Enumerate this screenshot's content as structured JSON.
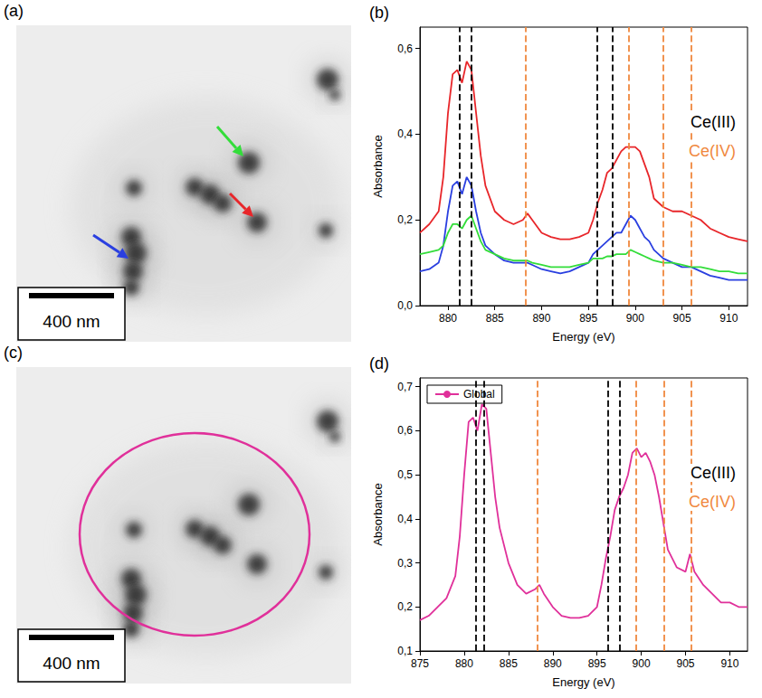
{
  "chart_data": [
    {
      "panel": "(b)",
      "type": "line",
      "xlabel": "Energy (eV)",
      "ylabel": "Absorbance",
      "x": [
        877,
        878,
        879,
        879.5,
        880,
        880.5,
        881,
        881.5,
        882,
        882.5,
        883,
        883.5,
        884,
        885,
        886,
        887,
        888,
        888.5,
        889,
        890,
        891,
        892,
        893,
        894,
        895,
        895.5,
        896,
        896.5,
        897,
        897.5,
        898,
        898.5,
        899,
        899.5,
        900,
        900.5,
        901,
        901.5,
        902,
        903,
        904,
        905,
        906,
        907,
        908,
        909,
        910,
        911,
        912
      ],
      "series": [
        {
          "color": "#e8262a",
          "values": [
            0.17,
            0.19,
            0.22,
            0.3,
            0.45,
            0.54,
            0.55,
            0.52,
            0.57,
            0.55,
            0.45,
            0.35,
            0.28,
            0.22,
            0.2,
            0.19,
            0.2,
            0.215,
            0.2,
            0.17,
            0.16,
            0.155,
            0.155,
            0.16,
            0.17,
            0.2,
            0.24,
            0.27,
            0.31,
            0.32,
            0.34,
            0.36,
            0.37,
            0.37,
            0.37,
            0.36,
            0.33,
            0.3,
            0.25,
            0.23,
            0.22,
            0.22,
            0.21,
            0.2,
            0.18,
            0.17,
            0.16,
            0.155,
            0.15
          ]
        },
        {
          "color": "#2a3fe0",
          "values": [
            0.08,
            0.085,
            0.1,
            0.14,
            0.22,
            0.28,
            0.29,
            0.26,
            0.3,
            0.28,
            0.22,
            0.17,
            0.14,
            0.12,
            0.105,
            0.1,
            0.1,
            0.1,
            0.095,
            0.085,
            0.08,
            0.075,
            0.08,
            0.09,
            0.1,
            0.12,
            0.13,
            0.14,
            0.15,
            0.16,
            0.17,
            0.17,
            0.19,
            0.21,
            0.2,
            0.18,
            0.16,
            0.15,
            0.13,
            0.11,
            0.1,
            0.09,
            0.09,
            0.08,
            0.07,
            0.065,
            0.06,
            0.06,
            0.06
          ]
        },
        {
          "color": "#33dd3a",
          "values": [
            0.12,
            0.125,
            0.13,
            0.14,
            0.17,
            0.19,
            0.19,
            0.18,
            0.2,
            0.21,
            0.18,
            0.15,
            0.13,
            0.12,
            0.11,
            0.105,
            0.105,
            0.105,
            0.1,
            0.095,
            0.09,
            0.09,
            0.09,
            0.095,
            0.1,
            0.11,
            0.11,
            0.11,
            0.115,
            0.115,
            0.12,
            0.12,
            0.12,
            0.13,
            0.125,
            0.12,
            0.115,
            0.11,
            0.105,
            0.1,
            0.1,
            0.095,
            0.09,
            0.09,
            0.085,
            0.08,
            0.08,
            0.075,
            0.075
          ]
        }
      ],
      "xlim": [
        877,
        912
      ],
      "xticks": [
        880,
        885,
        890,
        895,
        900,
        905,
        910
      ],
      "ylim": [
        0,
        0.65
      ],
      "yticks": [
        {
          "value": 0,
          "label": "0,0"
        },
        {
          "value": 0.2,
          "label": "0,2"
        },
        {
          "value": 0.4,
          "label": "0,4"
        },
        {
          "value": 0.6,
          "label": "0,6"
        }
      ],
      "reference_lines": [
        {
          "label": "Ce(III)",
          "color": "#000000",
          "x": [
            881.2,
            882.5,
            895.9,
            897.6
          ]
        },
        {
          "label": "Ce(IV)",
          "color": "#f0883e",
          "x": [
            888.3,
            899.3,
            903,
            906
          ]
        }
      ]
    },
    {
      "panel": "(d)",
      "type": "line",
      "xlabel": "Energy (eV)",
      "ylabel": "Absorbance",
      "x": [
        875,
        876,
        877,
        878,
        879,
        879.5,
        880,
        880.5,
        881,
        881.5,
        882,
        882.5,
        883,
        883.5,
        884,
        885,
        886,
        887,
        888,
        888.5,
        889,
        890,
        891,
        892,
        893,
        894,
        895,
        895.5,
        896,
        896.5,
        897,
        897.5,
        898,
        898.5,
        899,
        899.5,
        900,
        900.5,
        901,
        901.5,
        902,
        903,
        904,
        905,
        905.5,
        906,
        907,
        908,
        909,
        910,
        911,
        912
      ],
      "series": [
        {
          "name": "Global",
          "color": "#e0309a",
          "values": [
            0.17,
            0.18,
            0.2,
            0.22,
            0.27,
            0.36,
            0.5,
            0.62,
            0.63,
            0.6,
            0.66,
            0.65,
            0.55,
            0.45,
            0.38,
            0.3,
            0.25,
            0.23,
            0.24,
            0.25,
            0.23,
            0.2,
            0.18,
            0.175,
            0.175,
            0.18,
            0.2,
            0.25,
            0.31,
            0.36,
            0.42,
            0.45,
            0.47,
            0.5,
            0.55,
            0.56,
            0.54,
            0.55,
            0.53,
            0.5,
            0.45,
            0.33,
            0.29,
            0.28,
            0.32,
            0.28,
            0.25,
            0.23,
            0.21,
            0.21,
            0.2,
            0.2
          ]
        }
      ],
      "legend": "upper left",
      "xlim": [
        875,
        912
      ],
      "xticks": [
        875,
        880,
        885,
        890,
        895,
        900,
        905,
        910
      ],
      "ylim": [
        0.1,
        0.72
      ],
      "yticks": [
        {
          "value": 0.1,
          "label": "0,1"
        },
        {
          "value": 0.2,
          "label": "0,2"
        },
        {
          "value": 0.3,
          "label": "0,3"
        },
        {
          "value": 0.4,
          "label": "0,4"
        },
        {
          "value": 0.5,
          "label": "0,5"
        },
        {
          "value": 0.6,
          "label": "0,6"
        },
        {
          "value": 0.7,
          "label": "0,7"
        }
      ],
      "reference_lines": [
        {
          "label": "Ce(III)",
          "color": "#000000",
          "x": [
            881.3,
            882.2,
            896.2,
            897.6
          ]
        },
        {
          "label": "Ce(IV)",
          "color": "#f0883e",
          "x": [
            888.3,
            899.4,
            902.6,
            905.6
          ]
        }
      ]
    }
  ],
  "images": [
    {
      "panel": "(a)",
      "scale_bar": "400 nm"
    },
    {
      "panel": "(c)",
      "scale_bar": "400 nm"
    }
  ]
}
